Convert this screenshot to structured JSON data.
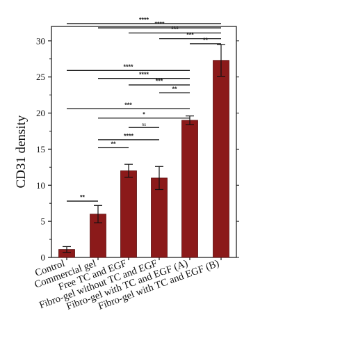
{
  "chart_data": {
    "type": "bar",
    "ylabel": "CD31 density",
    "xlabel": "",
    "ylim": [
      0,
      32
    ],
    "yticks": [
      0,
      5,
      10,
      15,
      20,
      25,
      30
    ],
    "categories": [
      "Control",
      "Commercial gel",
      "Free TC and EGF",
      "Fibro-gel without TC and EGF",
      "Fibro-gel with TC and EGF (A)",
      "Fibro-gel with TC and EGF (B)"
    ],
    "values": [
      1.1,
      6.0,
      12.0,
      11.0,
      19.0,
      27.3
    ],
    "errors": [
      0.4,
      1.2,
      0.9,
      1.6,
      0.6,
      2.2
    ],
    "bar_color": "#8b1a1a",
    "significance": [
      {
        "from": 0,
        "to": 1,
        "y": 7.8,
        "label": "**"
      },
      {
        "from": 1,
        "to": 2,
        "y": 15.2,
        "label": "**"
      },
      {
        "from": 1,
        "to": 3,
        "y": 16.3,
        "label": "****"
      },
      {
        "from": 2,
        "to": 3,
        "y": 18.0,
        "label": "ns"
      },
      {
        "from": 1,
        "to": 4,
        "y": 19.3,
        "label": "*"
      },
      {
        "from": 0,
        "to": 4,
        "y": 20.6,
        "label": "***"
      },
      {
        "from": 3,
        "to": 4,
        "y": 22.8,
        "label": "**"
      },
      {
        "from": 2,
        "to": 4,
        "y": 23.9,
        "label": "***"
      },
      {
        "from": 1,
        "to": 4,
        "y": 24.8,
        "label": "****"
      },
      {
        "from": 0,
        "to": 4,
        "y": 25.9,
        "label": "****"
      },
      {
        "from": 4,
        "to": 5,
        "y": 29.6,
        "label": "**"
      },
      {
        "from": 3,
        "to": 5,
        "y": 30.3,
        "label": "***"
      },
      {
        "from": 2,
        "to": 5,
        "y": 31.1,
        "label": "***"
      },
      {
        "from": 1,
        "to": 5,
        "y": 31.8,
        "label": "****"
      },
      {
        "from": 0,
        "to": 5,
        "y": 32.4,
        "label": "****"
      }
    ]
  }
}
